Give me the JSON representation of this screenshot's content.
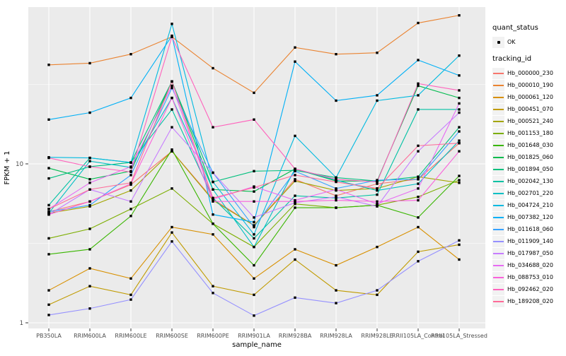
{
  "legend": {
    "quant_status_title": "quant_status",
    "ok_label": "OK",
    "tracking_title": "tracking_id"
  },
  "chart_data": {
    "type": "line",
    "title": "",
    "xlabel": "sample_name",
    "ylabel": "FPKM + 1",
    "yscale": "log10",
    "yticks": [
      1,
      10
    ],
    "ylim": [
      0.92,
      97
    ],
    "grid": "on",
    "legend_position": "right",
    "panel_background": "#EBEBEB",
    "grid_color": "#FFFFFF",
    "point_color": "#000000",
    "categories": [
      "PB350LA",
      "RRIM600LA",
      "RRIM600LE",
      "RRIM600SE",
      "RRIM600PE",
      "RRIM901LA",
      "RRIM928BA",
      "RRIM928LA",
      "RRIM928LE",
      "RRII105LA_Control",
      "RRII105LA_Stressed"
    ],
    "series": [
      {
        "name": "Hb_000000_230",
        "color": "#F8766D",
        "values": [
          5.0,
          5.8,
          7.4,
          12,
          6.0,
          4.1,
          8.0,
          6.3,
          7.5,
          8.0,
          13.5
        ]
      },
      {
        "name": "Hb_000010_190",
        "color": "#EA8331",
        "values": [
          42,
          43,
          49,
          63,
          40,
          28,
          54,
          49,
          50,
          77,
          86
        ]
      },
      {
        "name": "Hb_000061_120",
        "color": "#D89000",
        "values": [
          1.6,
          2.2,
          1.9,
          4.0,
          3.6,
          1.9,
          2.9,
          2.3,
          3.0,
          4.0,
          2.5
        ]
      },
      {
        "name": "Hb_000451_070",
        "color": "#C09B00",
        "values": [
          1.3,
          1.7,
          1.5,
          3.7,
          1.7,
          1.5,
          2.5,
          1.6,
          1.5,
          2.8,
          3.1
        ]
      },
      {
        "name": "Hb_000521_240",
        "color": "#A3A500",
        "values": [
          4.9,
          5.4,
          6.8,
          12,
          5.9,
          4.1,
          7.8,
          6.8,
          7.0,
          8.3,
          7.6
        ]
      },
      {
        "name": "Hb_001153_180",
        "color": "#7CAE00",
        "values": [
          3.4,
          3.9,
          5.2,
          7.0,
          4.2,
          3.0,
          5.6,
          5.3,
          5.5,
          6.2,
          7.9
        ]
      },
      {
        "name": "Hb_001648_030",
        "color": "#39B600",
        "values": [
          2.7,
          2.9,
          4.7,
          12.3,
          4.2,
          2.3,
          5.3,
          5.3,
          5.5,
          4.6,
          8.4
        ]
      },
      {
        "name": "Hb_001825_060",
        "color": "#00BB4E",
        "values": [
          9.4,
          8.0,
          9.0,
          33,
          6.9,
          6.7,
          9.3,
          7.8,
          7.8,
          31,
          26
        ]
      },
      {
        "name": "Hb_001894_050",
        "color": "#00BF7D",
        "values": [
          8.1,
          9.6,
          10.2,
          33,
          7.7,
          9.0,
          9.1,
          8.2,
          7.8,
          8.3,
          17
        ]
      },
      {
        "name": "Hb_002042_130",
        "color": "#00C1A3",
        "values": [
          5.5,
          10.9,
          10.2,
          22,
          6.1,
          3.4,
          6.3,
          6.1,
          6.4,
          22,
          22
        ]
      },
      {
        "name": "Hb_002701_220",
        "color": "#00BFC4",
        "values": [
          4.9,
          10.4,
          9.5,
          26,
          6.9,
          3.0,
          9.3,
          7.9,
          6.8,
          7.5,
          14
        ]
      },
      {
        "name": "Hb_004724_210",
        "color": "#00BAE0",
        "values": [
          11,
          10.9,
          10.2,
          76,
          7.7,
          3.6,
          15,
          8.2,
          25,
          27,
          48
        ]
      },
      {
        "name": "Hb_007382_120",
        "color": "#00B0F6",
        "values": [
          19,
          21,
          26,
          64,
          4.8,
          4.3,
          44,
          25,
          27,
          45,
          36
        ]
      },
      {
        "name": "Hb_011618_060",
        "color": "#35A2FF",
        "values": [
          5.0,
          5.5,
          8.5,
          30,
          8.8,
          4.0,
          9.0,
          7.0,
          7.9,
          8.0,
          16
        ]
      },
      {
        "name": "Hb_011909_140",
        "color": "#9590FF",
        "values": [
          1.12,
          1.23,
          1.4,
          3.25,
          1.54,
          1.11,
          1.44,
          1.33,
          1.6,
          2.44,
          3.3
        ]
      },
      {
        "name": "Hb_017987_050",
        "color": "#C77CFF",
        "values": [
          4.8,
          6.9,
          5.8,
          17,
          8.8,
          4.6,
          5.7,
          6.2,
          5.4,
          12,
          21
        ]
      },
      {
        "name": "Hb_034688_020",
        "color": "#E76BF3",
        "values": [
          5.2,
          7.6,
          9.6,
          31,
          6.0,
          7.2,
          5.9,
          6.9,
          5.6,
          7.0,
          24
        ]
      },
      {
        "name": "Hb_088753_010",
        "color": "#FA62DB",
        "values": [
          4.8,
          5.8,
          7.5,
          26,
          5.8,
          5.8,
          5.8,
          5.9,
          5.8,
          5.9,
          12
        ]
      },
      {
        "name": "Hb_092462_020",
        "color": "#FF62BC",
        "values": [
          10.9,
          9.6,
          8.9,
          63,
          17,
          19,
          9.3,
          8.0,
          7.7,
          32,
          29
        ]
      },
      {
        "name": "Hb_189208_020",
        "color": "#FF6A98",
        "values": [
          5.2,
          6.9,
          7.6,
          33,
          6.1,
          7.1,
          8.5,
          7.7,
          7.0,
          13,
          13.5
        ]
      }
    ]
  }
}
